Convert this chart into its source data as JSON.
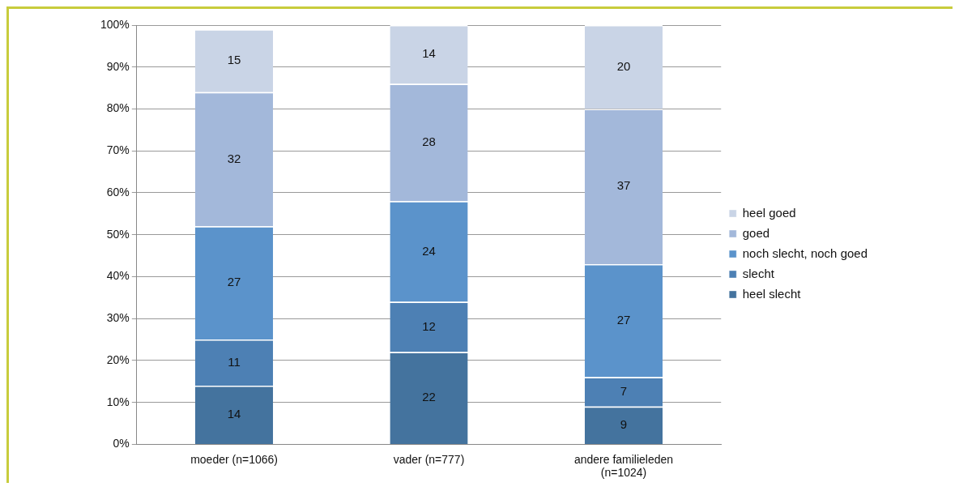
{
  "chart_data": {
    "type": "bar",
    "stacked": true,
    "categories": [
      "moeder (n=1066)",
      "vader (n=777)",
      "andere familieleden (n=1024)"
    ],
    "series": [
      {
        "name": "heel slecht",
        "color": "#44739e",
        "values": [
          14,
          22,
          9
        ]
      },
      {
        "name": "slecht",
        "color": "#4d80b4",
        "values": [
          11,
          12,
          7
        ]
      },
      {
        "name": "noch slecht, noch goed",
        "color": "#5b93cb",
        "values": [
          27,
          24,
          27
        ]
      },
      {
        "name": "goed",
        "color": "#a3b8da",
        "values": [
          32,
          28,
          37
        ]
      },
      {
        "name": "heel goed",
        "color": "#c9d4e6",
        "values": [
          15,
          14,
          20
        ]
      }
    ],
    "ylim": [
      0,
      100
    ],
    "yticks": [
      {
        "value": 0,
        "label": "0%"
      },
      {
        "value": 10,
        "label": "10%"
      },
      {
        "value": 20,
        "label": "20%"
      },
      {
        "value": 30,
        "label": "30%"
      },
      {
        "value": 40,
        "label": "40%"
      },
      {
        "value": 50,
        "label": "50%"
      },
      {
        "value": 60,
        "label": "60%"
      },
      {
        "value": 70,
        "label": "70%"
      },
      {
        "value": 80,
        "label": "80%"
      },
      {
        "value": 90,
        "label": "90%"
      },
      {
        "value": 100,
        "label": "100%"
      }
    ],
    "grid": "y",
    "legend": "right",
    "data_labels": true
  }
}
